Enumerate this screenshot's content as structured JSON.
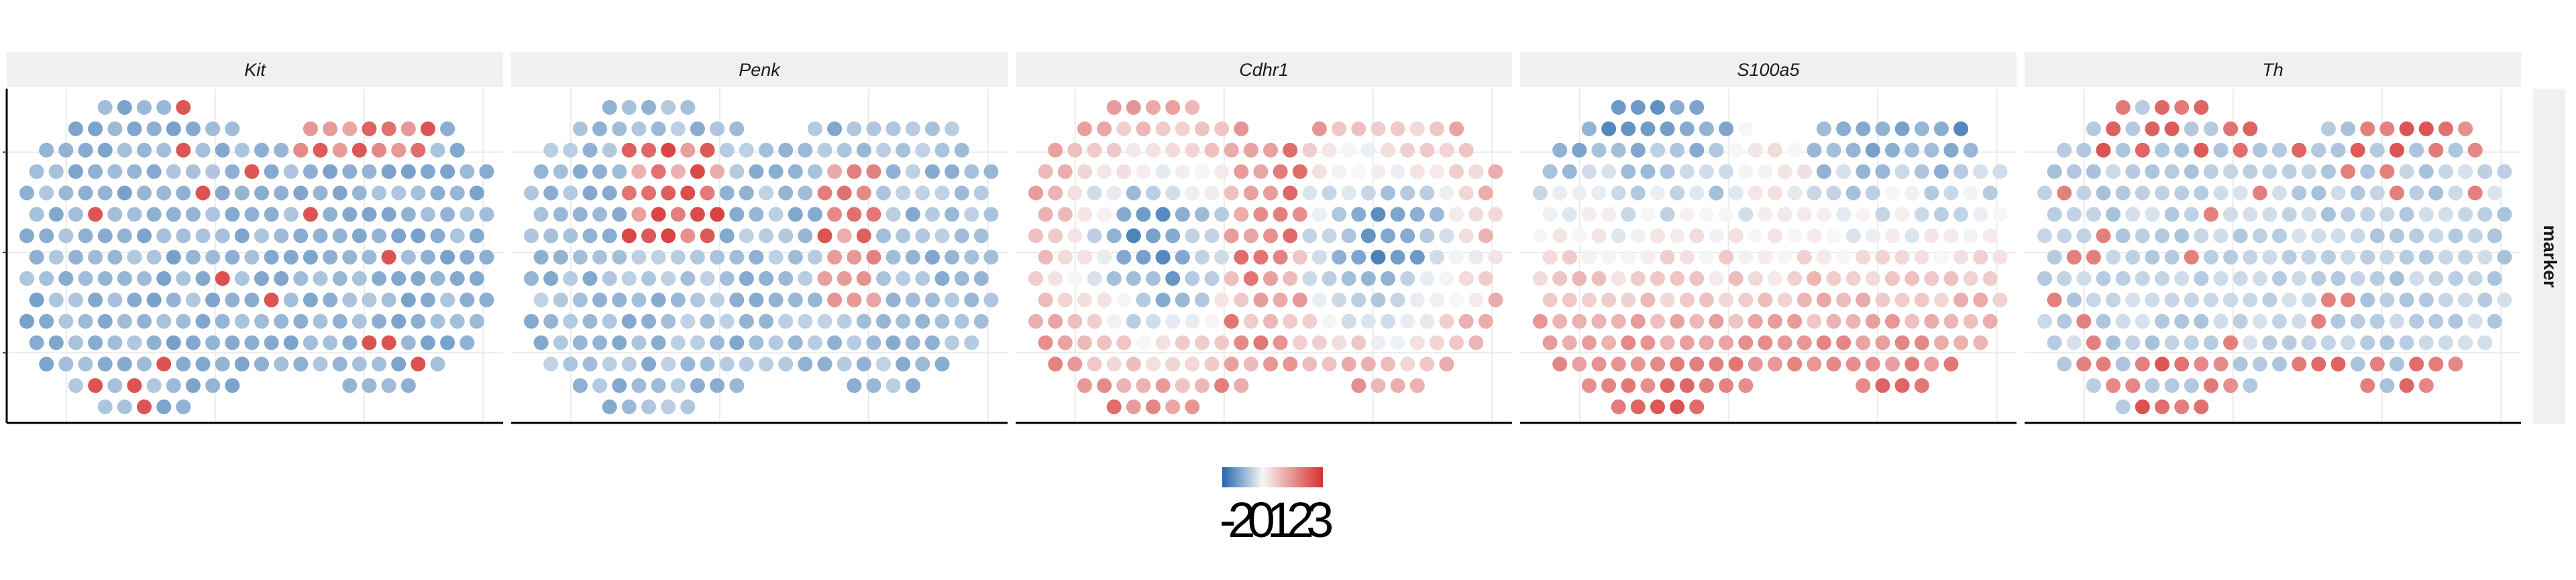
{
  "chart_data": {
    "type": "scatter",
    "description_kind": "spatial feature plot, one facet per marker gene, spots colored by expression",
    "facet_row_label": "marker",
    "panels": [
      {
        "name": "Kit"
      },
      {
        "name": "Penk"
      },
      {
        "name": "Cdhr1"
      },
      {
        "name": "S100a5"
      },
      {
        "name": "Th"
      }
    ],
    "colorbar": {
      "colors": [
        "#2166ac",
        "#f7f7f7",
        "#d6302e"
      ],
      "midpoint": 0,
      "range": [
        -2,
        3
      ],
      "tick_labels": [
        "-2",
        "0",
        "1",
        "2",
        "3"
      ],
      "tick_values": [
        -2,
        0,
        1,
        2,
        3
      ]
    },
    "axes": {
      "x_ticks_shown": false,
      "y_ticks_shown": false,
      "grid": true,
      "panel_background": "#ffffff",
      "strip_background": "#f0f0f0",
      "grid_color": "#ebebeb"
    }
  }
}
